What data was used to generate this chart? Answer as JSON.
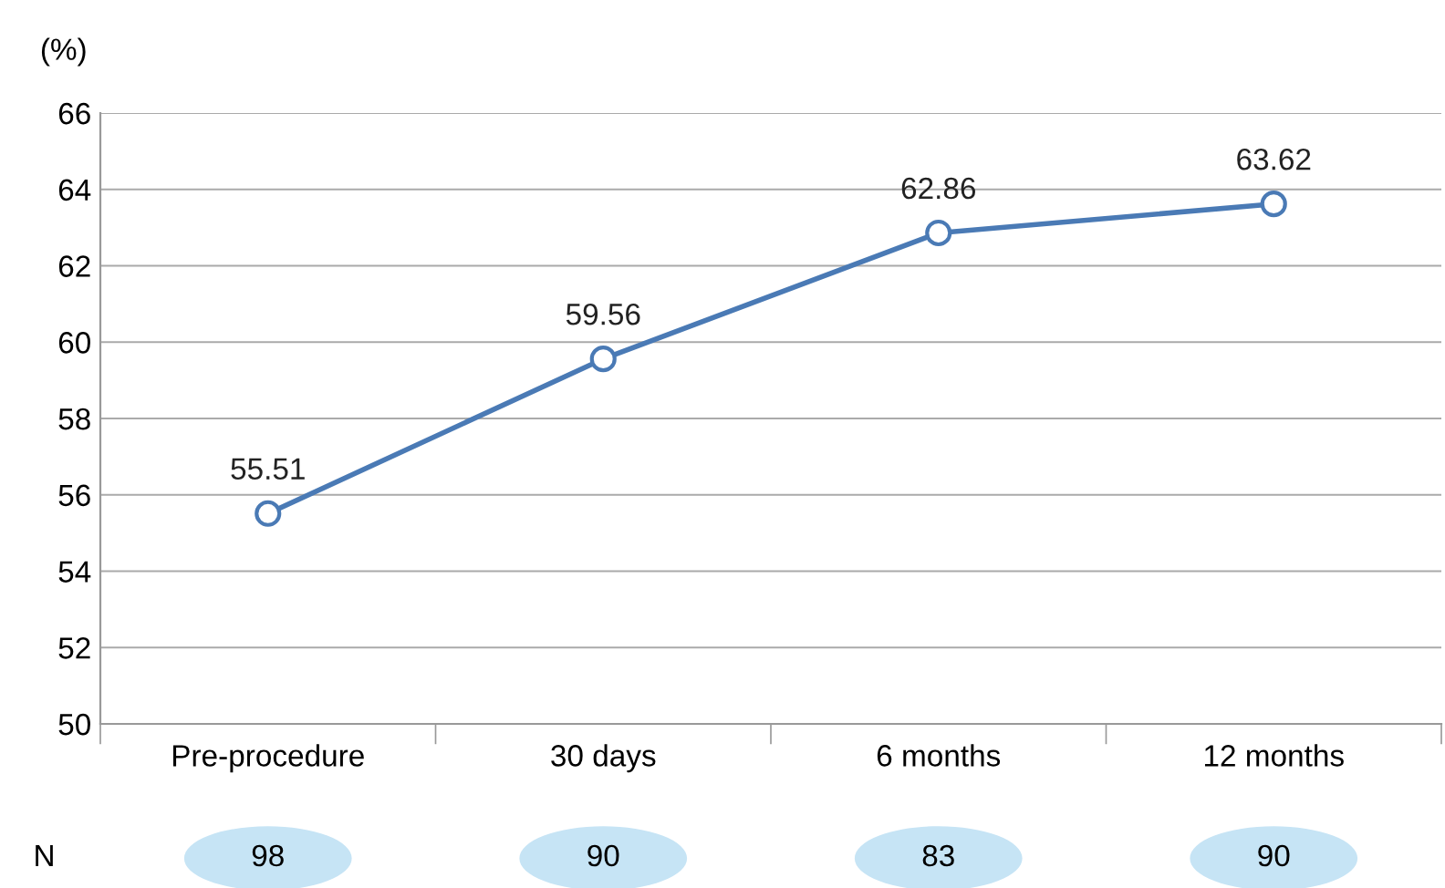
{
  "chart_data": {
    "type": "line",
    "ylabel": "(%)",
    "categories": [
      "Pre-procedure",
      "30 days",
      "6 months",
      "12 months"
    ],
    "series": [
      {
        "color": "#4a7ab5",
        "values": [
          55.51,
          59.56,
          62.86,
          63.62
        ]
      }
    ],
    "ylim": [
      50,
      66
    ],
    "yticks": [
      50,
      52,
      54,
      56,
      58,
      60,
      62,
      64,
      66
    ],
    "grid": "y",
    "marker": "circle",
    "line_style": "solid",
    "data_labels": true,
    "legend": false,
    "annotations": [
      "N",
      "98",
      "90",
      "83",
      "90"
    ]
  }
}
